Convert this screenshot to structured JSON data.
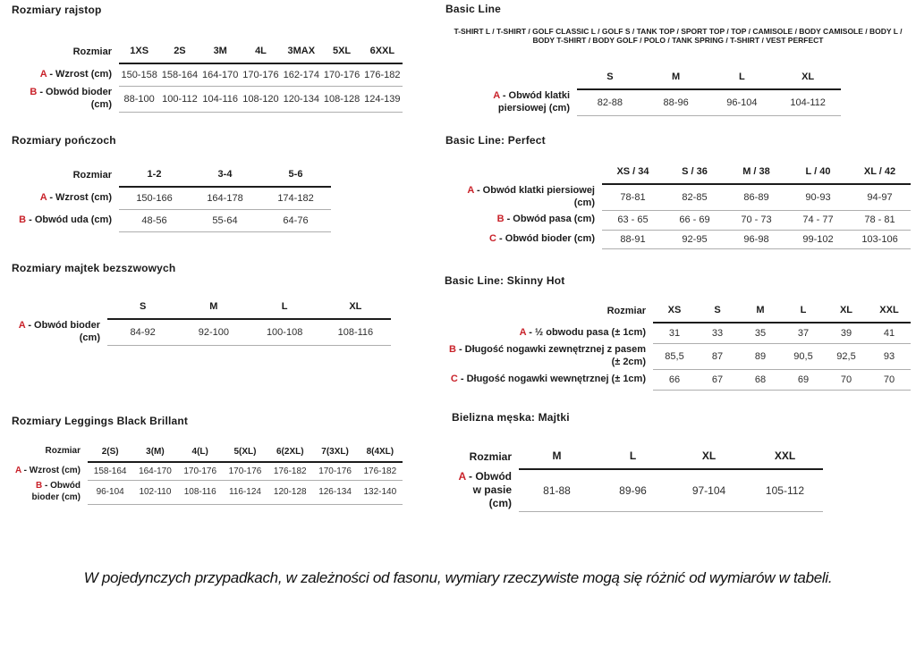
{
  "page": {
    "accent_color": "#c9222a",
    "note": "W pojedynczych przypadkach, w zależności od fasonu, wymiary rzeczywiste mogą się różnić od wymiarów w tabeli."
  },
  "tables": {
    "rajstop": {
      "title": "Rozmiary rajstop",
      "corner": "Rozmiar",
      "columns": [
        "1XS",
        "2S",
        "3M",
        "4L",
        "3MAX",
        "5XL",
        "6XXL"
      ],
      "rows": [
        {
          "letter": "A",
          "label": "- Wzrost (cm)",
          "values": [
            "150-158",
            "158-164",
            "164-170",
            "170-176",
            "162-174",
            "170-176",
            "176-182"
          ]
        },
        {
          "letter": "B",
          "label": "- Obwód bioder (cm)",
          "values": [
            "88-100",
            "100-112",
            "104-116",
            "108-120",
            "120-134",
            "108-128",
            "124-139"
          ]
        }
      ]
    },
    "ponczoch": {
      "title": "Rozmiary pończoch",
      "corner": "Rozmiar",
      "columns": [
        "1-2",
        "3-4",
        "5-6"
      ],
      "rows": [
        {
          "letter": "A",
          "label": "- Wzrost (cm)",
          "values": [
            "150-166",
            "164-178",
            "174-182"
          ]
        },
        {
          "letter": "B",
          "label": "- Obwód uda (cm)",
          "values": [
            "48-56",
            "55-64",
            "64-76"
          ]
        }
      ]
    },
    "majtek_bezszwowych": {
      "title": "Rozmiary majtek bezszwowych",
      "corner": "",
      "columns": [
        "S",
        "M",
        "L",
        "XL"
      ],
      "rows": [
        {
          "letter": "A",
          "label": "- Obwód bioder (cm)",
          "values": [
            "84-92",
            "92-100",
            "100-108",
            "108-116"
          ]
        }
      ]
    },
    "leggings": {
      "title": "Rozmiary Leggings Black Brillant",
      "corner": "Rozmiar",
      "columns": [
        "2(S)",
        "3(M)",
        "4(L)",
        "5(XL)",
        "6(2XL)",
        "7(3XL)",
        "8(4XL)"
      ],
      "rows": [
        {
          "letter": "A",
          "label": "- Wzrost (cm)",
          "values": [
            "158-164",
            "164-170",
            "170-176",
            "170-176",
            "176-182",
            "170-176",
            "176-182"
          ]
        },
        {
          "letter": "B",
          "label": "- Obwód bioder (cm)",
          "values": [
            "96-104",
            "102-110",
            "108-116",
            "116-124",
            "120-128",
            "126-134",
            "132-140"
          ]
        }
      ]
    },
    "basic": {
      "title": "Basic Line",
      "subtitle": "T-SHIRT L / T-SHIRT / GOLF CLASSIC L / GOLF S / TANK TOP / SPORT TOP / TOP / CAMISOLE / BODY CAMISOLE / BODY L / BODY T-SHIRT / BODY GOLF / POLO / TANK SPRING / T-SHIRT / VEST PERFECT",
      "corner": "",
      "columns": [
        "S",
        "M",
        "L",
        "XL"
      ],
      "rows": [
        {
          "letter": "A",
          "label": "- Obwód klatki piersiowej (cm)",
          "values": [
            "82-88",
            "88-96",
            "96-104",
            "104-112"
          ]
        }
      ]
    },
    "perfect": {
      "title": "Basic Line: Perfect",
      "corner": "",
      "columns": [
        "XS / 34",
        "S / 36",
        "M / 38",
        "L / 40",
        "XL / 42"
      ],
      "rows": [
        {
          "letter": "A",
          "label": "- Obwód klatki piersiowej (cm)",
          "values": [
            "78-81",
            "82-85",
            "86-89",
            "90-93",
            "94-97"
          ]
        },
        {
          "letter": "B",
          "label": "- Obwód pasa (cm)",
          "values": [
            "63 - 65",
            "66 - 69",
            "70 - 73",
            "74 - 77",
            "78 - 81"
          ]
        },
        {
          "letter": "C",
          "label": "- Obwód bioder (cm)",
          "values": [
            "88-91",
            "92-95",
            "96-98",
            "99-102",
            "103-106"
          ]
        }
      ]
    },
    "skinny": {
      "title": "Basic Line: Skinny Hot",
      "corner": "Rozmiar",
      "columns": [
        "XS",
        "S",
        "M",
        "L",
        "XL",
        "XXL"
      ],
      "rows": [
        {
          "letter": "A",
          "label": "- ½ obwodu pasa (± 1cm)",
          "values": [
            "31",
            "33",
            "35",
            "37",
            "39",
            "41"
          ]
        },
        {
          "letter": "B",
          "label": "- Długość nogawki zewnętrznej z pasem (± 2cm)",
          "values": [
            "85,5",
            "87",
            "89",
            "90,5",
            "92,5",
            "93"
          ]
        },
        {
          "letter": "C",
          "label": "- Długość nogawki wewnętrznej (± 1cm)",
          "values": [
            "66",
            "67",
            "68",
            "69",
            "70",
            "70"
          ]
        }
      ]
    },
    "majtki": {
      "title": "Bielizna męska: Majtki",
      "corner": "Rozmiar",
      "columns": [
        "M",
        "L",
        "XL",
        "XXL"
      ],
      "rows": [
        {
          "letter": "A",
          "label": "- Obwód w pasie (cm)",
          "values": [
            "81-88",
            "89-96",
            "97-104",
            "105-112"
          ]
        }
      ]
    }
  }
}
